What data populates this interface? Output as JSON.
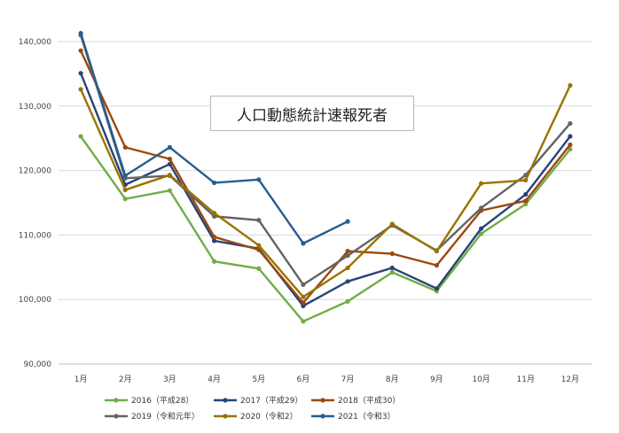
{
  "chart_data": {
    "type": "line",
    "title": "人口動態統計速報死者",
    "xlabel": "",
    "ylabel": "",
    "categories": [
      "1月",
      "2月",
      "3月",
      "4月",
      "5月",
      "6月",
      "7月",
      "8月",
      "9月",
      "10月",
      "11月",
      "12月"
    ],
    "ylim": [
      90000,
      140000
    ],
    "yticks": [
      90000,
      100000,
      110000,
      120000,
      130000,
      140000
    ],
    "ytick_labels": [
      "90,000",
      "100,000",
      "110,000",
      "120,000",
      "130,000",
      "140,000"
    ],
    "grid": true,
    "legend_position": "bottom",
    "series": [
      {
        "name": "2016（平成28）",
        "color": "#70ad47",
        "values": [
          125300,
          115600,
          116900,
          105900,
          104800,
          96600,
          99700,
          104200,
          101300,
          110200,
          114800,
          123300
        ]
      },
      {
        "name": "2017（平成29）",
        "color": "#264478",
        "values": [
          135100,
          117800,
          121000,
          109100,
          107900,
          99000,
          102800,
          104900,
          101700,
          111000,
          116300,
          125300
        ]
      },
      {
        "name": "2018（平成30）",
        "color": "#9e480e",
        "values": [
          138600,
          123600,
          121800,
          109700,
          107700,
          99500,
          107500,
          107100,
          105300,
          113800,
          115300,
          124000
        ]
      },
      {
        "name": "2019（令和元年）",
        "color": "#636363",
        "values": [
          141000,
          118800,
          119200,
          112900,
          112300,
          102300,
          106800,
          111500,
          107600,
          114200,
          119300,
          127300
        ]
      },
      {
        "name": "2020（令和2）",
        "color": "#997300",
        "values": [
          132600,
          117000,
          119300,
          113400,
          108400,
          100400,
          104900,
          111700,
          107500,
          118000,
          118500,
          133200
        ]
      },
      {
        "name": "2021（令和3）",
        "color": "#255e91",
        "values": [
          141300,
          119200,
          123600,
          118100,
          118600,
          108700,
          112100,
          null,
          null,
          null,
          null,
          null
        ]
      }
    ]
  }
}
